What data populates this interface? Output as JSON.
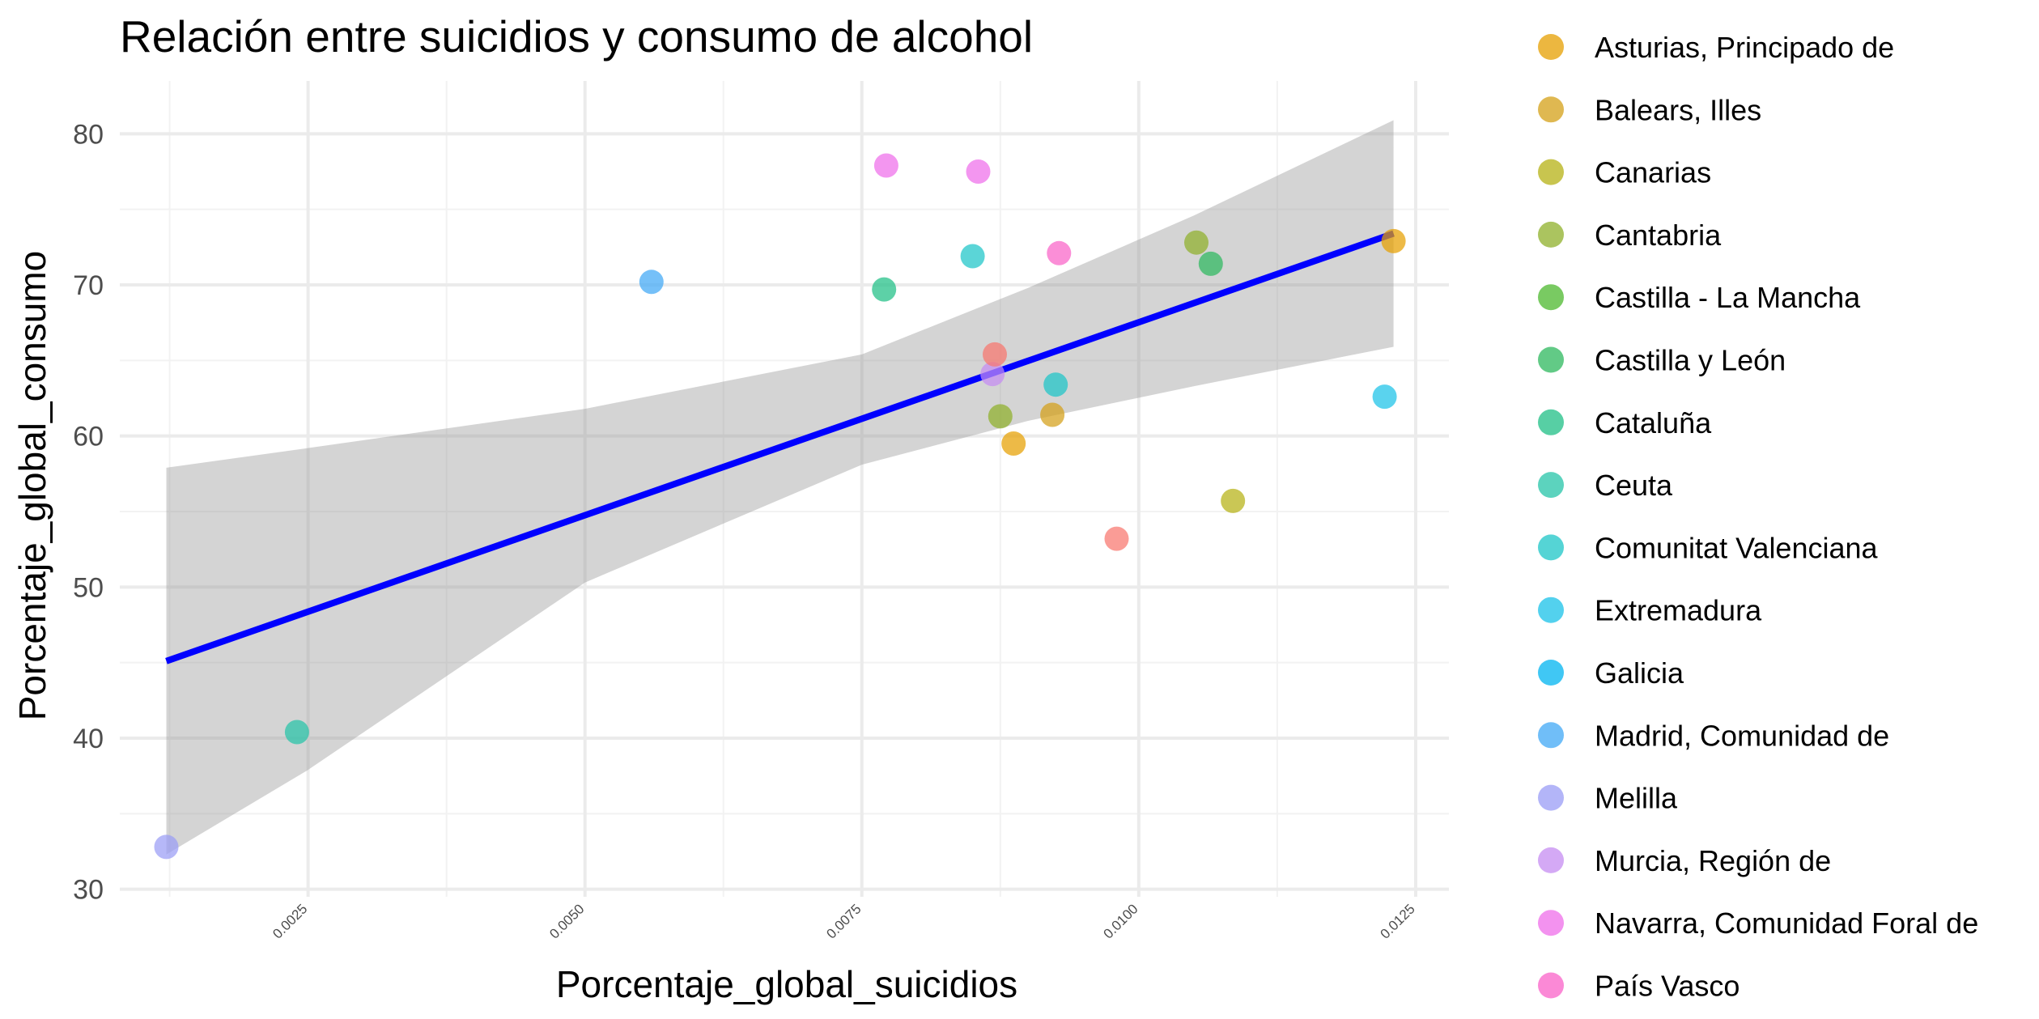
{
  "chart_data": {
    "type": "scatter",
    "title": "Relación entre suicidios y consumo de alcohol",
    "xlabel": "Porcentaje_global_suicidios",
    "ylabel": "Porcentaje_global_consumo",
    "xlim": [
      0.0008,
      0.0128
    ],
    "ylim": [
      29.5,
      83.5
    ],
    "x_ticks": [
      {
        "value": 0.0025,
        "label": "0.0025"
      },
      {
        "value": 0.005,
        "label": "0.0050"
      },
      {
        "value": 0.0075,
        "label": "0.0075"
      },
      {
        "value": 0.01,
        "label": "0.0100"
      },
      {
        "value": 0.0125,
        "label": "0.0125"
      }
    ],
    "y_ticks": [
      {
        "value": 30,
        "label": "30"
      },
      {
        "value": 40,
        "label": "40"
      },
      {
        "value": 50,
        "label": "50"
      },
      {
        "value": 60,
        "label": "60"
      },
      {
        "value": 70,
        "label": "70"
      },
      {
        "value": 80,
        "label": "80"
      }
    ],
    "grid": true,
    "legend_placement": "right",
    "trend_line": {
      "color": "#0000ff",
      "x": [
        0.00122,
        0.0123
      ],
      "y": [
        45.1,
        73.4
      ]
    },
    "confidence_band": {
      "color": "#999999",
      "x": [
        0.00122,
        0.0025,
        0.005,
        0.0075,
        0.009,
        0.0105,
        0.0123
      ],
      "upper": [
        57.9,
        59.2,
        61.8,
        65.4,
        69.8,
        74.6,
        80.9
      ],
      "lower": [
        32.3,
        37.9,
        50.3,
        58.1,
        61.0,
        63.3,
        65.9
      ]
    },
    "series": [
      {
        "name": "Asturias, Principado de",
        "color": "#E69F00",
        "points": [
          {
            "x": 0.00887,
            "y": 59.5
          },
          {
            "x": 0.0123,
            "y": 72.9
          }
        ]
      },
      {
        "name": "Balears, Illes",
        "color": "#D4A017",
        "points": [
          {
            "x": 0.00922,
            "y": 61.4
          }
        ]
      },
      {
        "name": "Canarias",
        "color": "#B5B214",
        "points": [
          {
            "x": 0.01085,
            "y": 55.7
          }
        ]
      },
      {
        "name": "Cantabria",
        "color": "#8FB02A",
        "points": [
          {
            "x": 0.01052,
            "y": 72.8
          },
          {
            "x": 0.00875,
            "y": 61.3
          }
        ]
      },
      {
        "name": "Castilla - La Mancha",
        "color": "#4CB82E",
        "points": []
      },
      {
        "name": "Castilla y León",
        "color": "#2DB85E",
        "points": [
          {
            "x": 0.01065,
            "y": 71.4
          }
        ]
      },
      {
        "name": "Cataluña",
        "color": "#1FBF85",
        "points": [
          {
            "x": 0.0077,
            "y": 69.7
          }
        ]
      },
      {
        "name": "Ceuta",
        "color": "#26C4A8",
        "points": [
          {
            "x": 0.0024,
            "y": 40.4
          }
        ]
      },
      {
        "name": "Comunitat Valenciana",
        "color": "#1CC5C7",
        "points": [
          {
            "x": 0.0085,
            "y": 71.9
          },
          {
            "x": 0.00925,
            "y": 63.4
          }
        ]
      },
      {
        "name": "Extremadura",
        "color": "#1AC2E8",
        "points": [
          {
            "x": 0.01222,
            "y": 62.6
          }
        ]
      },
      {
        "name": "Galicia",
        "color": "#00B4F0",
        "points": []
      },
      {
        "name": "Madrid, Comunidad de",
        "color": "#40A8F5",
        "points": [
          {
            "x": 0.0056,
            "y": 70.2
          }
        ]
      },
      {
        "name": "Melilla",
        "color": "#9A9CF5",
        "points": [
          {
            "x": 0.00122,
            "y": 32.8
          }
        ]
      },
      {
        "name": "Murcia, Región de",
        "color": "#C58CF2",
        "points": [
          {
            "x": 0.00868,
            "y": 64.1
          }
        ]
      },
      {
        "name": "Navarra, Comunidad Foral de",
        "color": "#EF6EEA",
        "points": [
          {
            "x": 0.00772,
            "y": 77.9
          },
          {
            "x": 0.00855,
            "y": 77.5
          }
        ]
      },
      {
        "name": "País Vasco",
        "color": "#FA62C8",
        "points": [
          {
            "x": 0.00928,
            "y": 72.1
          }
        ]
      },
      {
        "name": "",
        "color": "#F8766D",
        "points": [
          {
            "x": 0.0098,
            "y": 53.2
          },
          {
            "x": 0.0087,
            "y": 65.4
          }
        ]
      }
    ]
  }
}
